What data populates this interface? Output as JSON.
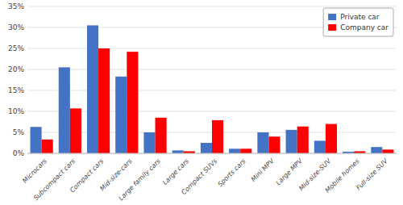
{
  "chart_data": {
    "type": "bar",
    "categories": [
      "Microcars",
      "Subcompact cars",
      "Compact cars",
      "Mid-size-cars",
      "Large family cars",
      "Large cars",
      "Compact SUVs",
      "Sports cars",
      "Mini MPV",
      "Large MPV",
      "Mid-size-SUV",
      "Mobile homes",
      "Full-size SUV"
    ],
    "series": [
      {
        "name": "Private car",
        "color": "#4472C4",
        "values": [
          6.3,
          20.5,
          30.5,
          18.3,
          5.0,
          0.7,
          2.5,
          1.1,
          5.0,
          5.6,
          3.0,
          0.4,
          1.5
        ]
      },
      {
        "name": "Company car",
        "color": "#FF0000",
        "values": [
          3.3,
          10.7,
          25.0,
          24.2,
          8.5,
          0.5,
          7.9,
          1.1,
          4.0,
          6.4,
          7.0,
          0.5,
          0.9
        ]
      }
    ],
    "ylim": [
      0,
      35
    ],
    "yticks": [
      {
        "value": 0,
        "label": "0%"
      },
      {
        "value": 5,
        "label": "5%"
      },
      {
        "value": 10,
        "label": "10%"
      },
      {
        "value": 15,
        "label": "15%"
      },
      {
        "value": 20,
        "label": "20%"
      },
      {
        "value": 25,
        "label": "25%"
      },
      {
        "value": 30,
        "label": "30%"
      },
      {
        "value": 35,
        "label": "35%"
      }
    ],
    "grid": true,
    "legend": "upper right"
  }
}
